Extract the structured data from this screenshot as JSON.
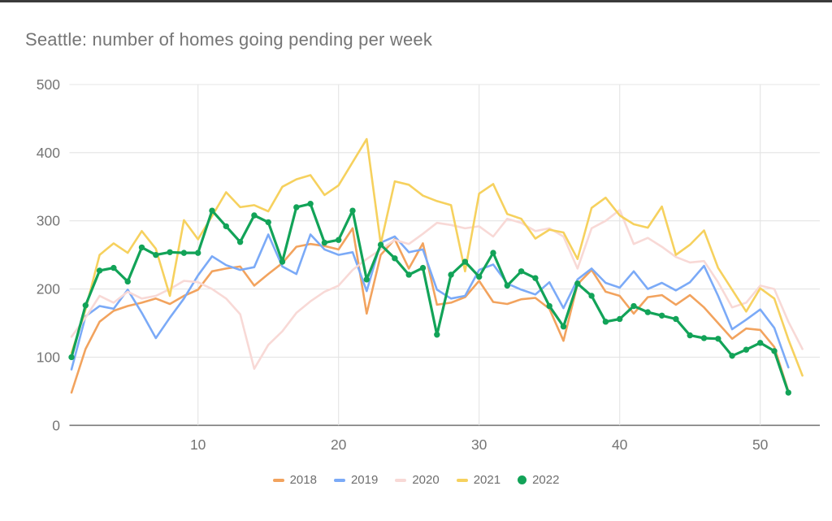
{
  "page": {
    "background": "#ffffff",
    "top_edge_color": "#3b3b3b",
    "title_color": "#757575",
    "axis_label_color": "#757575",
    "gridline_color": "#e4e4e4",
    "baseline_color": "#7a7a7a",
    "legend_text_color": "#6e6e6e"
  },
  "chart_data": {
    "type": "line",
    "title": "Seattle: number of homes going pending per week",
    "xlabel": "",
    "ylabel": "",
    "x_unit": "week of year",
    "xlim": [
      1,
      54
    ],
    "ylim": [
      0,
      500
    ],
    "y_ticks": [
      0,
      100,
      200,
      300,
      400,
      500
    ],
    "x_ticks": [
      10,
      20,
      30,
      40,
      50
    ],
    "grid": "both",
    "legend_position": "bottom",
    "series": [
      {
        "name": "2018",
        "color": "#f2a35e",
        "marker": false,
        "values": [
          48,
          112,
          152,
          168,
          175,
          180,
          186,
          178,
          190,
          199,
          226,
          230,
          233,
          205,
          222,
          238,
          262,
          266,
          263,
          258,
          289,
          164,
          250,
          273,
          230,
          267,
          177,
          180,
          188,
          212,
          181,
          178,
          185,
          187,
          171,
          124,
          207,
          228,
          196,
          190,
          164,
          188,
          191,
          177,
          191,
          173,
          150,
          127,
          142,
          140,
          115,
          50
        ]
      },
      {
        "name": "2019",
        "color": "#7baaf7",
        "marker": false,
        "values": [
          82,
          160,
          175,
          171,
          199,
          165,
          128,
          158,
          186,
          220,
          248,
          235,
          228,
          232,
          280,
          233,
          222,
          280,
          258,
          250,
          254,
          197,
          268,
          277,
          254,
          258,
          199,
          186,
          190,
          228,
          236,
          208,
          199,
          192,
          210,
          172,
          214,
          230,
          209,
          202,
          226,
          200,
          209,
          198,
          210,
          234,
          190,
          141,
          155,
          170,
          143,
          85
        ]
      },
      {
        "name": "2020",
        "color": "#f8d9d6",
        "marker": false,
        "values": [
          130,
          158,
          190,
          180,
          196,
          186,
          190,
          200,
          212,
          210,
          200,
          186,
          163,
          83,
          118,
          138,
          165,
          182,
          196,
          205,
          228,
          244,
          258,
          272,
          266,
          281,
          297,
          294,
          289,
          292,
          277,
          303,
          297,
          285,
          289,
          277,
          230,
          289,
          300,
          316,
          266,
          275,
          262,
          247,
          239,
          241,
          210,
          173,
          180,
          205,
          200,
          152,
          112
        ]
      },
      {
        "name": "2021",
        "color": "#f6d15e",
        "marker": false,
        "values": [
          106,
          170,
          250,
          267,
          253,
          285,
          259,
          190,
          301,
          273,
          307,
          342,
          320,
          323,
          314,
          350,
          361,
          367,
          338,
          352,
          386,
          420,
          266,
          358,
          353,
          337,
          329,
          323,
          226,
          340,
          354,
          310,
          303,
          274,
          287,
          283,
          244,
          319,
          334,
          308,
          295,
          290,
          321,
          250,
          265,
          286,
          231,
          199,
          167,
          201,
          186,
          126,
          73
        ]
      },
      {
        "name": "2022",
        "color": "#12a358",
        "marker": true,
        "values": [
          100,
          176,
          227,
          231,
          211,
          261,
          250,
          254,
          253,
          253,
          315,
          292,
          269,
          308,
          298,
          240,
          320,
          325,
          268,
          272,
          315,
          214,
          265,
          245,
          221,
          231,
          133,
          221,
          240,
          218,
          253,
          205,
          226,
          216,
          175,
          145,
          208,
          190,
          152,
          156,
          175,
          166,
          161,
          156,
          132,
          128,
          127,
          102,
          111,
          121,
          109,
          48
        ]
      }
    ]
  }
}
